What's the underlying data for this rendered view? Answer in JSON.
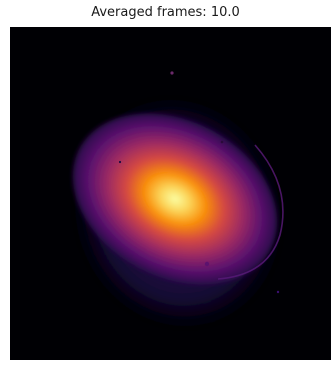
{
  "figure": {
    "title": "Averaged frames: 10.0"
  },
  "image": {
    "colormap": "inferno",
    "background_color": "#000004",
    "colors": {
      "core": "#fcffa4",
      "hot": "#fbb61a",
      "warm": "#ed6925",
      "mid": "#bc3754",
      "cool": "#781c6d",
      "faint": "#3b0f70",
      "dark": "#0d0829"
    }
  }
}
